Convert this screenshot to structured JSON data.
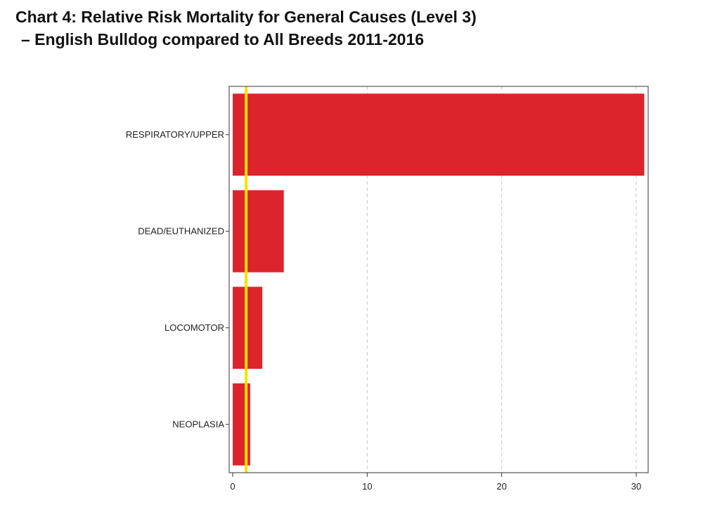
{
  "title": {
    "line1": "Chart 4: Relative Risk Mortality for General Causes (Level 3)",
    "line2": "– English Bulldog compared to All Breeds 2011-2016"
  },
  "colors": {
    "bar": "#dc242c",
    "reference_line": "#ffe000",
    "grid": "#c8c8c8",
    "frame": "#555555"
  },
  "chart_data": {
    "type": "bar",
    "orientation": "horizontal",
    "title": "Chart 4: Relative Risk Mortality for General Causes (Level 3) – English Bulldog compared to All Breeds 2011-2016",
    "categories": [
      "RESPIRATORY/UPPER",
      "DEAD/EUTHANIZED",
      "LOCOMOTOR",
      "NEOPLASIA"
    ],
    "values": [
      30.6,
      3.8,
      2.2,
      1.3
    ],
    "reference_line": 1,
    "xlim": [
      -0.2,
      31.5
    ],
    "xticks": [
      0,
      10,
      20,
      30
    ],
    "xlabel": "",
    "ylabel": "",
    "grid": "vertical dashed"
  }
}
